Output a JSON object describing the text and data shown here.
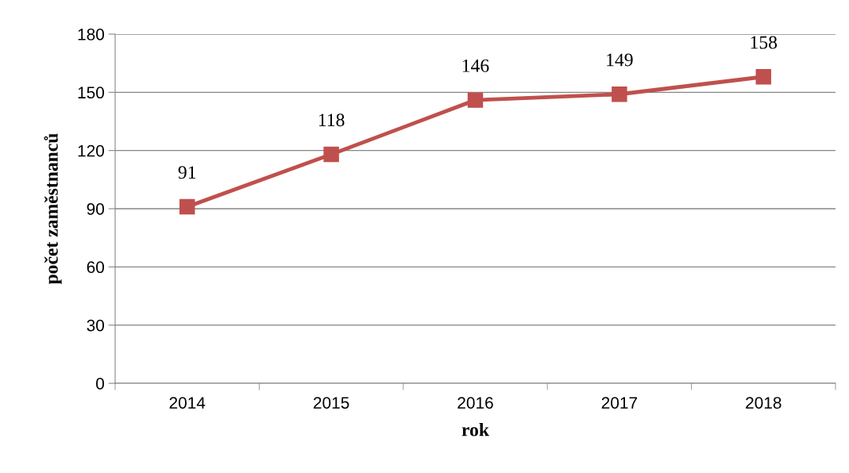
{
  "chart_data": {
    "type": "line",
    "xlabel": "rok",
    "ylabel": "počet zaměstnanců",
    "categories": [
      "2014",
      "2015",
      "2016",
      "2017",
      "2018"
    ],
    "series": [
      {
        "color": "#c0504d",
        "values": [
          91,
          118,
          146,
          149,
          158
        ]
      }
    ],
    "ylim": [
      0,
      180
    ],
    "yticks": [
      0,
      30,
      60,
      90,
      120,
      150,
      180
    ],
    "grid": "y",
    "marker": "square",
    "line_style": "solid",
    "data_labels": true
  }
}
